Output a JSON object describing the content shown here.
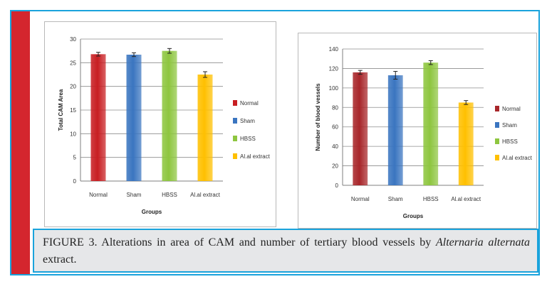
{
  "colors": {
    "frame_border": "#1aa3dc",
    "side_band": "#d4262e",
    "caption_bg": "#e6e7e9"
  },
  "chart_data": [
    {
      "type": "bar",
      "categories": [
        "Normal",
        "Sham",
        "HBSS",
        "Al.al extract"
      ],
      "values": [
        26.8,
        26.7,
        27.5,
        22.5
      ],
      "errors": [
        0.4,
        0.4,
        0.5,
        0.6
      ],
      "colors": [
        "#c81e22",
        "#3a75c0",
        "#8ec63f",
        "#ffc000"
      ],
      "legend": [
        "Normal",
        "Sham",
        "HBSS",
        "Al.al extract"
      ],
      "xlabel": "Groups",
      "ylabel": "Total CAM Area",
      "ylim": [
        0,
        30
      ],
      "yticks": [
        0,
        5,
        10,
        15,
        20,
        25,
        30
      ],
      "grid": true,
      "legend_position": "right"
    },
    {
      "type": "bar",
      "categories": [
        "Normal",
        "Sham",
        "HBSS",
        "Al.al extract"
      ],
      "values": [
        116,
        113,
        126,
        85
      ],
      "errors": [
        2,
        4,
        2,
        2
      ],
      "colors": [
        "#a8262a",
        "#3a75c0",
        "#8ec63f",
        "#ffc000"
      ],
      "legend": [
        "Normal",
        "Sham",
        "HBSS",
        "Al.al extract"
      ],
      "xlabel": "Groups",
      "ylabel": "Number of blood vessels",
      "ylim": [
        0,
        140
      ],
      "yticks": [
        0,
        20,
        40,
        60,
        80,
        100,
        120,
        140
      ],
      "grid": true,
      "legend_position": "right"
    }
  ],
  "caption": {
    "prefix": "FIGURE 3. Alterations in area of CAM and number of  tertiary blood vessels  by ",
    "species": "Alternaria alternata",
    "suffix": " extract."
  }
}
